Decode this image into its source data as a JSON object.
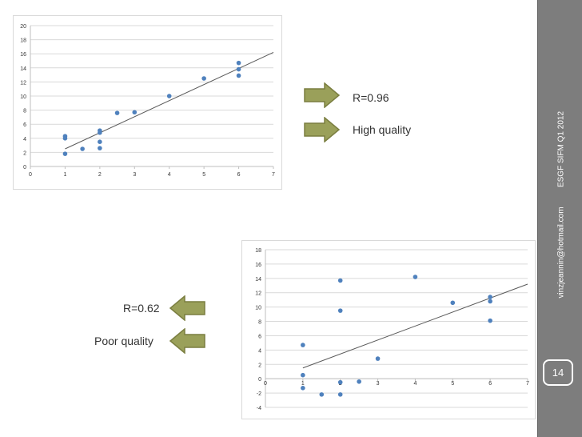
{
  "slide": {
    "footer_email": "vinzjeannin@hotmail.com",
    "footer_event": "ESGF SIFM Q1 2012",
    "page_number": "14",
    "top_labels": [
      "R=0.96",
      "High quality"
    ],
    "bottom_labels": [
      "R=0.62",
      "Poor quality"
    ],
    "colors": {
      "sidebar": "#7d7d7d",
      "arrow_fill": "#9aa05a",
      "arrow_stroke": "#7a7e40",
      "point": "#4f81bd",
      "trendline": "#595959"
    }
  },
  "chart_data": [
    {
      "type": "scatter",
      "title": "",
      "xlabel": "",
      "ylabel": "",
      "xlim": [
        0,
        7
      ],
      "ylim": [
        0,
        20
      ],
      "xticks": [
        0,
        1,
        2,
        3,
        4,
        5,
        6,
        7
      ],
      "yticks": [
        0,
        2,
        4,
        6,
        8,
        10,
        12,
        14,
        16,
        18,
        20
      ],
      "grid": true,
      "points": [
        [
          1,
          1.8
        ],
        [
          1,
          4.0
        ],
        [
          1,
          4.3
        ],
        [
          1.5,
          2.5
        ],
        [
          2,
          2.6
        ],
        [
          2,
          3.5
        ],
        [
          2,
          4.8
        ],
        [
          2,
          5.1
        ],
        [
          2.5,
          7.6
        ],
        [
          3,
          7.7
        ],
        [
          4,
          10
        ],
        [
          5,
          12.5
        ],
        [
          6,
          12.9
        ],
        [
          6,
          13.8
        ],
        [
          6,
          14.7
        ]
      ],
      "trendline": {
        "x": [
          1,
          7
        ],
        "y": [
          2.5,
          16.2
        ]
      }
    },
    {
      "type": "scatter",
      "title": "",
      "xlabel": "",
      "ylabel": "",
      "xlim": [
        0,
        7
      ],
      "ylim": [
        -4,
        18
      ],
      "xticks": [
        0,
        1,
        2,
        3,
        4,
        5,
        6,
        7
      ],
      "yticks": [
        -4,
        -2,
        0,
        2,
        4,
        6,
        8,
        10,
        12,
        14,
        16,
        18
      ],
      "grid": true,
      "points": [
        [
          1,
          4.7
        ],
        [
          1,
          0.5
        ],
        [
          1,
          -1.3
        ],
        [
          1.5,
          -2.2
        ],
        [
          2,
          13.7
        ],
        [
          2,
          9.5
        ],
        [
          2,
          -0.5
        ],
        [
          2,
          -2.2
        ],
        [
          2.5,
          -0.4
        ],
        [
          3,
          2.8
        ],
        [
          4,
          14.2
        ],
        [
          5,
          10.6
        ],
        [
          6,
          11.4
        ],
        [
          6,
          10.8
        ],
        [
          6,
          8.1
        ]
      ],
      "trendline": {
        "x": [
          1,
          7
        ],
        "y": [
          1.5,
          13.2
        ]
      }
    }
  ]
}
